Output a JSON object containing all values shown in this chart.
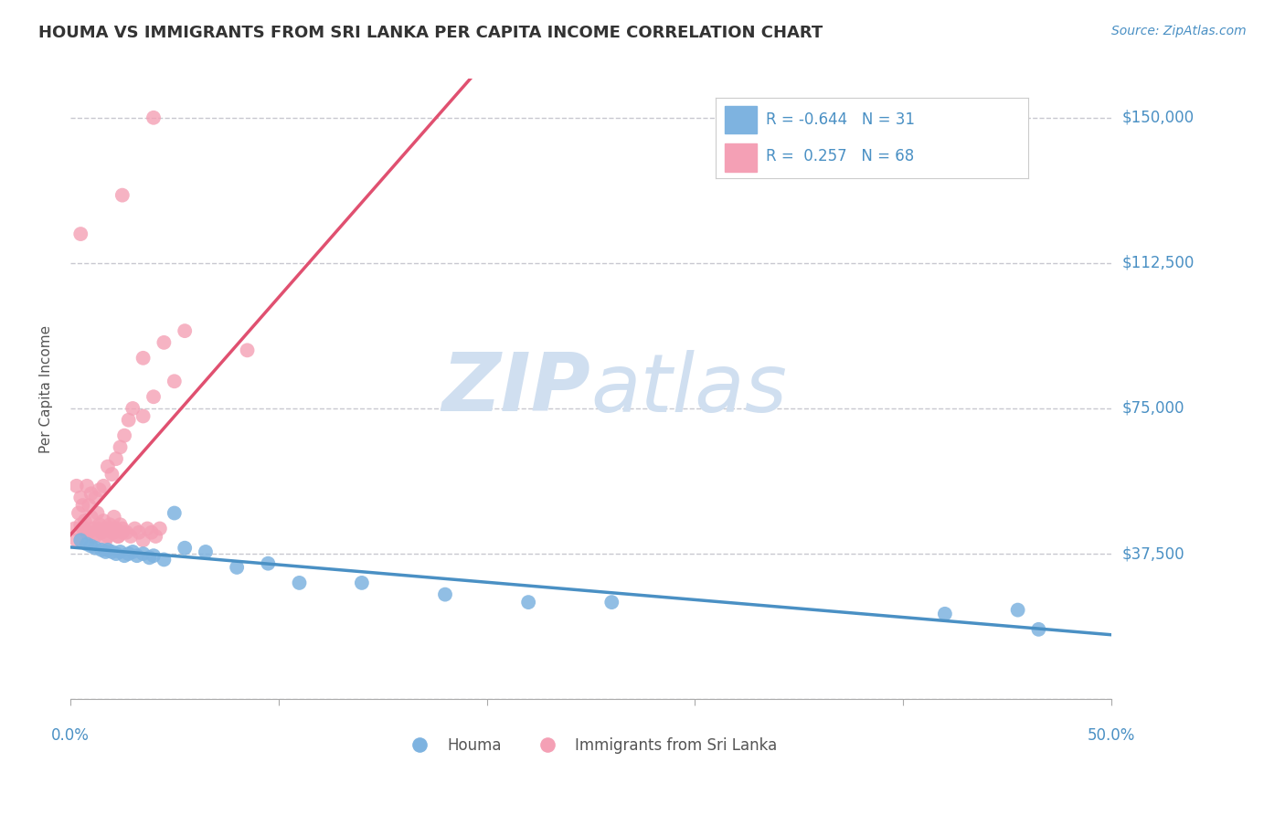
{
  "title": "HOUMA VS IMMIGRANTS FROM SRI LANKA PER CAPITA INCOME CORRELATION CHART",
  "source": "Source: ZipAtlas.com",
  "ylabel": "Per Capita Income",
  "x_min": 0.0,
  "x_max": 0.5,
  "y_min": 0,
  "y_max": 160000,
  "x_ticks": [
    0.0,
    0.1,
    0.2,
    0.3,
    0.4,
    0.5
  ],
  "y_ticks": [
    0,
    37500,
    75000,
    112500,
    150000
  ],
  "y_tick_labels": [
    "",
    "$37,500",
    "$75,000",
    "$112,500",
    "$150,000"
  ],
  "houma_R": -0.644,
  "houma_N": 31,
  "srilanka_R": 0.257,
  "srilanka_N": 68,
  "houma_color": "#7eb3e0",
  "srilanka_color": "#f4a0b5",
  "houma_line_color": "#4a90c4",
  "srilanka_line_color": "#e05070",
  "legend_houma_label": "Houma",
  "legend_srilanka_label": "Immigrants from Sri Lanka",
  "watermark_zip": "ZIP",
  "watermark_atlas": "atlas",
  "background_color": "#ffffff",
  "grid_color": "#c8c8d0",
  "title_color": "#333333",
  "axis_label_color": "#555555",
  "tick_label_color": "#4a90c4",
  "watermark_color": "#d0dff0",
  "houma_x": [
    0.005,
    0.008,
    0.01,
    0.012,
    0.015,
    0.017,
    0.018,
    0.02,
    0.022,
    0.024,
    0.026,
    0.028,
    0.03,
    0.032,
    0.035,
    0.038,
    0.04,
    0.045,
    0.05,
    0.055,
    0.065,
    0.08,
    0.095,
    0.11,
    0.14,
    0.18,
    0.22,
    0.26,
    0.42,
    0.455,
    0.465
  ],
  "houma_y": [
    41000,
    40000,
    39500,
    39000,
    38500,
    38000,
    38500,
    38000,
    37500,
    38000,
    37000,
    37500,
    38000,
    37000,
    37500,
    36500,
    37000,
    36000,
    48000,
    39000,
    38000,
    34000,
    35000,
    30000,
    30000,
    27000,
    25000,
    25000,
    22000,
    23000,
    18000
  ],
  "srilanka_x": [
    0.002,
    0.003,
    0.004,
    0.005,
    0.006,
    0.007,
    0.008,
    0.009,
    0.01,
    0.011,
    0.012,
    0.013,
    0.014,
    0.015,
    0.016,
    0.017,
    0.018,
    0.019,
    0.02,
    0.021,
    0.022,
    0.023,
    0.024,
    0.025,
    0.003,
    0.005,
    0.007,
    0.009,
    0.011,
    0.013,
    0.015,
    0.017,
    0.019,
    0.021,
    0.023,
    0.025,
    0.027,
    0.029,
    0.031,
    0.033,
    0.035,
    0.037,
    0.039,
    0.041,
    0.043,
    0.006,
    0.008,
    0.01,
    0.012,
    0.014,
    0.016,
    0.018,
    0.02,
    0.022,
    0.024,
    0.026,
    0.028,
    0.03,
    0.035,
    0.04,
    0.05,
    0.025,
    0.04,
    0.005,
    0.085,
    0.035,
    0.045,
    0.055
  ],
  "srilanka_y": [
    44000,
    55000,
    48000,
    52000,
    44000,
    46000,
    43000,
    50000,
    47000,
    44000,
    42000,
    48000,
    45000,
    43000,
    46000,
    44000,
    42000,
    45000,
    43000,
    47000,
    44000,
    42000,
    45000,
    43000,
    41000,
    45000,
    44000,
    43000,
    42000,
    44000,
    43000,
    41000,
    44000,
    43000,
    42000,
    44000,
    43000,
    42000,
    44000,
    43000,
    41000,
    44000,
    43000,
    42000,
    44000,
    50000,
    55000,
    53000,
    52000,
    54000,
    55000,
    60000,
    58000,
    62000,
    65000,
    68000,
    72000,
    75000,
    73000,
    78000,
    82000,
    130000,
    150000,
    120000,
    90000,
    88000,
    92000,
    95000
  ]
}
